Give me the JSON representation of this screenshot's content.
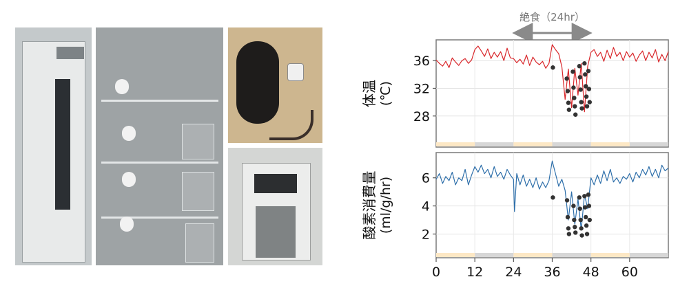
{
  "photos": [
    {
      "name": "incubator-chamber-photo",
      "bg": "#bcc3c6"
    },
    {
      "name": "metabolic-cage-rack-photo",
      "bg": "#a9aeb0"
    },
    {
      "name": "mouse-with-sensor-photo",
      "bg": "#cdb68f"
    },
    {
      "name": "analyzer-device-photo",
      "bg": "#d2d4d2"
    }
  ],
  "chart_data": {
    "type": "line",
    "annotation": {
      "label": "絶食（24hr）",
      "from": 24,
      "to": 48
    },
    "xlim": [
      0,
      72
    ],
    "xticks": [
      0,
      12,
      24,
      36,
      48,
      60
    ],
    "light_dark": [
      {
        "from": 0,
        "to": 12,
        "phase": "light"
      },
      {
        "from": 12,
        "to": 24,
        "phase": "dark"
      },
      {
        "from": 24,
        "to": 36,
        "phase": "light"
      },
      {
        "from": 36,
        "to": 48,
        "phase": "dark"
      },
      {
        "from": 48,
        "to": 60,
        "phase": "light"
      },
      {
        "from": 60,
        "to": 72,
        "phase": "dark"
      }
    ],
    "colors": {
      "light": "#fde8c5",
      "dark": "#d7d7d7",
      "temp": "#d9262a",
      "vo2": "#2e6faa",
      "marker": "#333333"
    },
    "panels": [
      {
        "name": "body-temperature",
        "ylabel": "体温",
        "yunit": "(℃)",
        "ylim": [
          24.5,
          38.6
        ],
        "yticks": [
          28,
          32,
          36
        ],
        "series": [
          {
            "x": [
              0,
              1,
              2,
              3,
              4,
              5,
              6,
              7,
              8,
              9,
              10,
              11,
              12,
              13,
              14,
              15,
              16,
              17,
              18,
              19,
              20,
              21,
              22,
              23,
              24,
              25,
              26,
              27,
              28,
              29,
              30,
              31,
              32,
              33,
              34,
              35,
              36,
              37,
              38,
              39,
              40,
              41,
              42,
              43,
              44,
              45,
              46,
              47,
              48,
              49,
              50,
              51,
              52,
              53,
              54,
              55,
              56,
              57,
              58,
              59,
              60,
              61,
              62,
              63,
              64,
              65,
              66,
              67,
              68,
              69,
              70,
              71,
              72
            ],
            "y": [
              36.1,
              35.6,
              35.2,
              35.9,
              35.0,
              36.4,
              35.8,
              35.3,
              36.0,
              36.3,
              35.6,
              36.1,
              37.6,
              38.1,
              37.4,
              36.6,
              37.7,
              36.3,
              37.2,
              36.5,
              37.3,
              36.0,
              37.8,
              36.4,
              36.3,
              35.7,
              36.2,
              35.5,
              36.8,
              35.3,
              36.5,
              35.8,
              35.4,
              35.9,
              34.9,
              35.6,
              38.3,
              37.6,
              37.0,
              35.1,
              30.4,
              34.8,
              29.2,
              34.9,
              31.0,
              35.6,
              28.6,
              35.2,
              37.2,
              37.6,
              36.6,
              37.2,
              35.9,
              37.5,
              36.3,
              37.9,
              36.6,
              37.2,
              36.0,
              37.3,
              36.5,
              37.1,
              35.9,
              36.8,
              37.4,
              36.0,
              37.2,
              36.4,
              37.6,
              35.8,
              36.9,
              36.0,
              37.3
            ]
          }
        ],
        "markers": {
          "x": [
            36.2,
            40.5,
            40.8,
            41.0,
            41.2,
            42.4,
            42.6,
            42.8,
            43.0,
            43.2,
            44.4,
            44.6,
            44.8,
            45.0,
            45.2,
            46.0,
            46.2,
            46.4,
            46.6,
            46.8,
            47.2,
            47.4,
            47.6
          ],
          "y": [
            35.0,
            33.4,
            31.6,
            29.9,
            28.9,
            34.4,
            32.1,
            30.6,
            29.4,
            28.2,
            35.2,
            33.6,
            31.8,
            30.0,
            29.1,
            35.6,
            34.0,
            32.3,
            30.8,
            29.4,
            34.5,
            31.9,
            30.0
          ]
        }
      },
      {
        "name": "oxygen-consumption",
        "ylabel": "酸素消費量",
        "yunit": "(ml/g/hr)",
        "ylim": [
          0.8,
          7.6
        ],
        "yticks": [
          2,
          4,
          6
        ],
        "series": [
          {
            "x": [
              0,
              1,
              2,
              3,
              4,
              5,
              6,
              7,
              8,
              9,
              10,
              11,
              12,
              13,
              14,
              15,
              16,
              17,
              18,
              19,
              20,
              21,
              22,
              23,
              24,
              24.3,
              25,
              26,
              27,
              28,
              29,
              30,
              31,
              32,
              33,
              34,
              35,
              36,
              37,
              38,
              39,
              40,
              41,
              42,
              43,
              44,
              45,
              46,
              47,
              48,
              49,
              50,
              51,
              52,
              53,
              54,
              55,
              56,
              57,
              58,
              59,
              60,
              61,
              62,
              63,
              64,
              65,
              66,
              67,
              68,
              69,
              70,
              71,
              72
            ],
            "y": [
              5.9,
              6.3,
              5.6,
              6.1,
              5.8,
              6.4,
              5.5,
              6.0,
              5.8,
              6.6,
              5.5,
              6.2,
              6.8,
              6.4,
              6.9,
              6.3,
              6.6,
              6.0,
              6.8,
              6.1,
              6.4,
              5.9,
              6.6,
              6.2,
              5.9,
              3.6,
              6.3,
              5.5,
              6.2,
              5.4,
              5.9,
              5.3,
              6.0,
              5.2,
              5.7,
              5.3,
              5.8,
              7.2,
              6.3,
              5.4,
              5.9,
              5.1,
              3.0,
              5.0,
              2.7,
              4.5,
              2.3,
              4.8,
              3.8,
              6.0,
              5.5,
              6.2,
              5.6,
              6.5,
              5.8,
              6.6,
              5.7,
              6.0,
              5.6,
              6.1,
              5.9,
              6.3,
              5.7,
              6.4,
              6.0,
              6.6,
              6.2,
              6.8,
              6.1,
              6.6,
              6.0,
              6.9,
              6.5,
              6.7
            ]
          }
        ],
        "markers": {
          "x": [
            36.2,
            40.6,
            40.8,
            41.0,
            41.2,
            42.6,
            42.8,
            43.0,
            43.2,
            44.4,
            44.6,
            44.8,
            45.0,
            45.2,
            46.0,
            46.2,
            46.4,
            46.6,
            46.8,
            47.2,
            47.4,
            47.6
          ],
          "y": [
            4.6,
            4.4,
            3.2,
            2.4,
            2.0,
            4.0,
            3.0,
            2.5,
            2.1,
            4.6,
            3.8,
            3.0,
            2.4,
            1.9,
            4.7,
            3.9,
            3.2,
            2.6,
            2.0,
            4.8,
            4.0,
            3.0
          ]
        }
      }
    ]
  }
}
